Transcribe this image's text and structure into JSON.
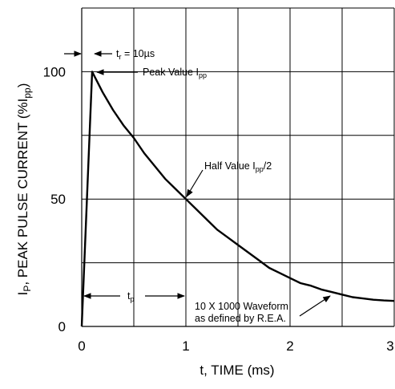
{
  "chart_data": {
    "type": "line",
    "xlabel": "t, TIME (ms)",
    "ylabel": {
      "prefix": "I",
      "prefix_sub": "P",
      "middle": ", PEAK PULSE CURRENT (%I",
      "suffix_sub": "pp",
      "suffix": ")"
    },
    "xlim": [
      0,
      3
    ],
    "ylim": [
      0,
      125
    ],
    "x_ticks": [
      0,
      1,
      2,
      3
    ],
    "x_tick_labels": [
      "0",
      "1",
      "2",
      "3"
    ],
    "y_ticks": [
      0,
      50,
      100
    ],
    "y_tick_labels": [
      "0",
      "50",
      "100"
    ],
    "grid_x": [
      0.5,
      1,
      1.5,
      2,
      2.5,
      3
    ],
    "grid_y": [
      25,
      50,
      75,
      100,
      125
    ],
    "grid": true,
    "series": [
      {
        "x": [
          0,
          0.1,
          0.2,
          0.3,
          0.4,
          0.5,
          0.6,
          0.7,
          0.8,
          0.9,
          1.0,
          1.1,
          1.2,
          1.3,
          1.4,
          1.5,
          1.6,
          1.7,
          1.8,
          1.9,
          2.0,
          2.1,
          2.2,
          2.3,
          2.4,
          2.5,
          2.6,
          2.7,
          2.8,
          2.9,
          3.0
        ],
        "y": [
          0,
          100,
          92,
          85,
          79,
          74,
          68,
          63,
          58,
          54,
          50,
          46,
          42,
          38,
          35,
          32,
          29,
          26,
          23,
          21,
          19,
          17,
          16,
          14.5,
          13.5,
          12.5,
          11.5,
          11,
          10.5,
          10.2,
          10
        ]
      }
    ],
    "annotations": {
      "tr": {
        "main": "t",
        "sub": "r",
        "rest": " = 10µs"
      },
      "peak": {
        "main": "Peak Value I",
        "sub": "pp"
      },
      "half": {
        "main": "Half Value I",
        "sub": "pp",
        "rest": "/2"
      },
      "tp": {
        "main": "t",
        "sub": "p"
      },
      "waveform_line1": "10 X 1000 Waveform",
      "waveform_line2": "as defined by R.E.A."
    }
  }
}
